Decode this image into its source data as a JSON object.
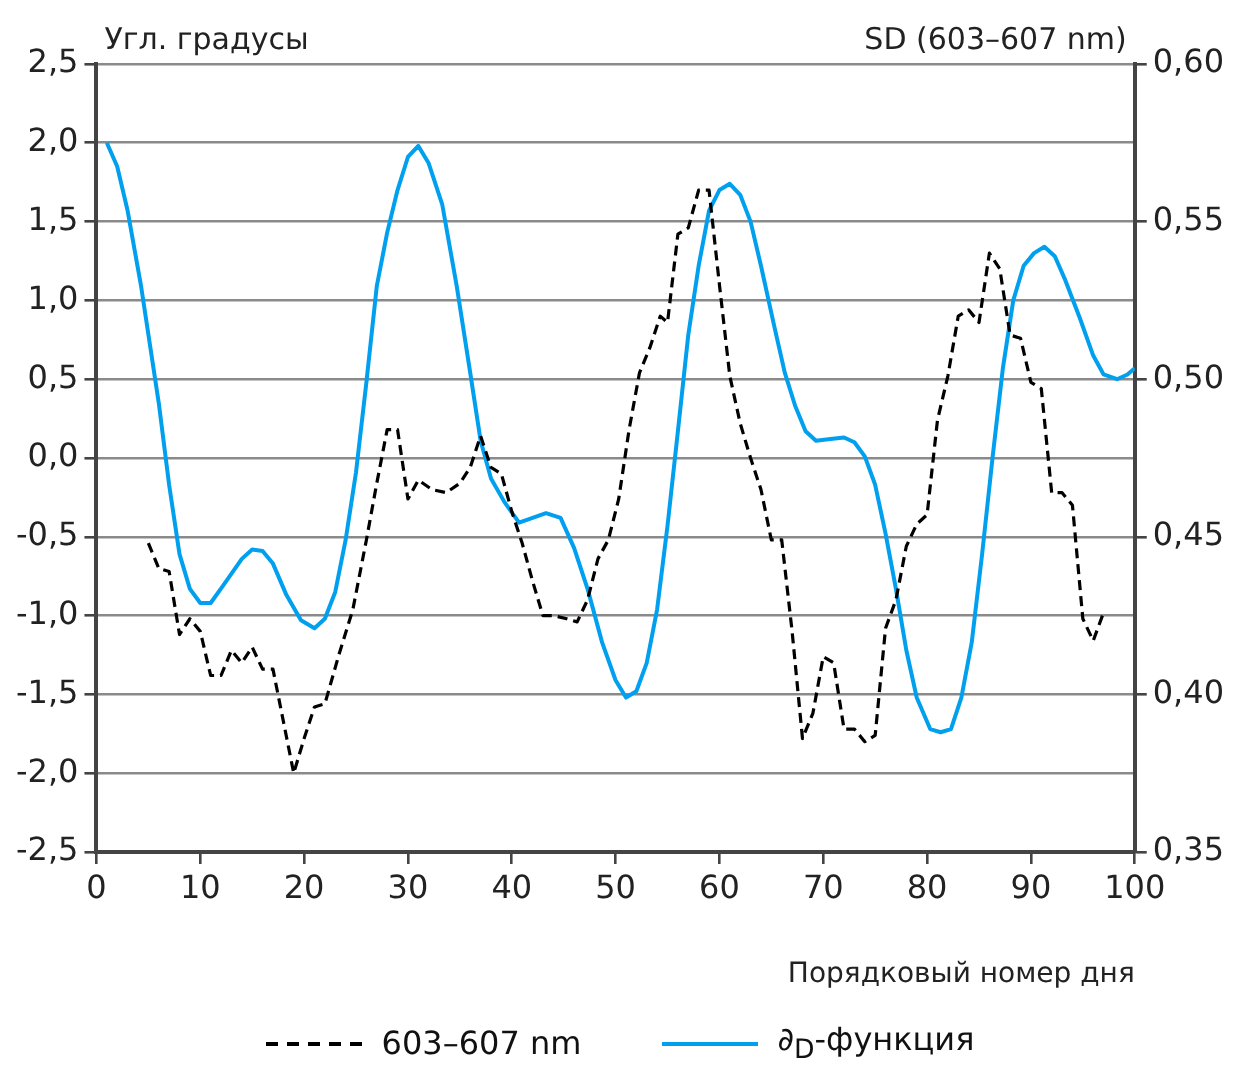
{
  "chart_data": {
    "type": "line",
    "xlabel": "Порядковый номер дня",
    "ylabel": "Угл. градусы",
    "y2label": "SD (603–607 nm)",
    "xlim": [
      0,
      100
    ],
    "xticks": [
      0,
      10,
      20,
      30,
      40,
      50,
      60,
      70,
      80,
      90,
      100
    ],
    "ylim": [
      -2.5,
      2.5
    ],
    "yticks": [
      {
        "value": -2.5,
        "label": "-2,5"
      },
      {
        "value": -2,
        "label": "-2,0"
      },
      {
        "value": -1.5,
        "label": "-1,5"
      },
      {
        "value": -1,
        "label": "-1,0"
      },
      {
        "value": -0.5,
        "label": "-0,5"
      },
      {
        "value": 0,
        "label": "0,0"
      },
      {
        "value": 0.5,
        "label": "0,5"
      },
      {
        "value": 1,
        "label": "1,0"
      },
      {
        "value": 1.5,
        "label": "1,5"
      },
      {
        "value": 2,
        "label": "2,0"
      },
      {
        "value": 2.5,
        "label": "2,5"
      }
    ],
    "y2lim": [
      0.35,
      0.6
    ],
    "y2ticks": [
      {
        "value": 0.35,
        "label": "0,35"
      },
      {
        "value": 0.4,
        "label": "0,40"
      },
      {
        "value": 0.45,
        "label": "0,45"
      },
      {
        "value": 0.5,
        "label": "0,50"
      },
      {
        "value": 0.55,
        "label": "0,55"
      },
      {
        "value": 0.6,
        "label": "0,60"
      }
    ],
    "grid": "y",
    "legend": "bottom",
    "marker": "none",
    "series": [
      {
        "name": "603–607 nm",
        "color": "#000000",
        "axis": "y2",
        "line_style": "dashed",
        "x": [
          5,
          6,
          7,
          8,
          9,
          10,
          11,
          12,
          13,
          14,
          15,
          16,
          17,
          19,
          20,
          21,
          22,
          23.3,
          24.7,
          26,
          27,
          28,
          29,
          30,
          31,
          32.3,
          33.7,
          35,
          36,
          37,
          38,
          39,
          40,
          41,
          42,
          43,
          44,
          45.3,
          46.3,
          47.3,
          48.3,
          49.3,
          50.3,
          51.3,
          52.3,
          53.3,
          54.3,
          55,
          56,
          57,
          58,
          59,
          60,
          61,
          62,
          63,
          64,
          65,
          66,
          67,
          68,
          69,
          70,
          71,
          72,
          73,
          74,
          75,
          76,
          77,
          78,
          79,
          80,
          81,
          82,
          83,
          84,
          85,
          86,
          87,
          88,
          89,
          90,
          91,
          92,
          93,
          94,
          95,
          96,
          97
        ],
        "values": [
          0.448,
          0.44,
          0.439,
          0.419,
          0.424,
          0.42,
          0.406,
          0.406,
          0.414,
          0.41,
          0.415,
          0.408,
          0.408,
          0.375,
          0.386,
          0.396,
          0.397,
          0.412,
          0.427,
          0.449,
          0.467,
          0.484,
          0.484,
          0.462,
          0.468,
          0.465,
          0.464,
          0.467,
          0.472,
          0.482,
          0.472,
          0.47,
          0.458,
          0.448,
          0.436,
          0.425,
          0.425,
          0.424,
          0.423,
          0.43,
          0.443,
          0.449,
          0.462,
          0.484,
          0.502,
          0.51,
          0.52,
          0.518,
          0.546,
          0.548,
          0.56,
          0.56,
          0.53,
          0.501,
          0.486,
          0.475,
          0.465,
          0.449,
          0.449,
          0.42,
          0.386,
          0.394,
          0.412,
          0.41,
          0.389,
          0.389,
          0.385,
          0.387,
          0.421,
          0.43,
          0.447,
          0.454,
          0.457,
          0.487,
          0.501,
          0.52,
          0.522,
          0.518,
          0.54,
          0.535,
          0.514,
          0.513,
          0.499,
          0.497,
          0.464,
          0.464,
          0.46,
          0.424,
          0.417,
          0.426
        ]
      },
      {
        "name": "∂$_{D}$-функция",
        "color": "#00a0ef",
        "line_style": "solid",
        "x": [
          1,
          2,
          3,
          4.3,
          6,
          7,
          8,
          9,
          10,
          11,
          12.3,
          14,
          15,
          16,
          17,
          18.3,
          19.7,
          21,
          22,
          23,
          24,
          25,
          26,
          27,
          28,
          29,
          30,
          31,
          32,
          33.3,
          34.7,
          36,
          37,
          38,
          39.3,
          40.7,
          42,
          43.3,
          44.7,
          46,
          47.3,
          48.7,
          50,
          51,
          52,
          53,
          54,
          55,
          56,
          57,
          58,
          59,
          60,
          61,
          62,
          63,
          64,
          65.3,
          66.3,
          67.3,
          68.3,
          69.3,
          70.7,
          72,
          73,
          74,
          75,
          76,
          77,
          78,
          79,
          80.3,
          81.3,
          82.3,
          83.3,
          84.3,
          85.3,
          86.3,
          87.3,
          88.3,
          89.3,
          90.3,
          91.3,
          92.3,
          93.3,
          94.7,
          96,
          97,
          98.3,
          99.3,
          100
        ],
        "values": [
          2.0,
          1.85,
          1.57,
          1.09,
          0.35,
          -0.17,
          -0.61,
          -0.83,
          -0.92,
          -0.92,
          -0.8,
          -0.64,
          -0.58,
          -0.59,
          -0.67,
          -0.87,
          -1.03,
          -1.08,
          -1.02,
          -0.85,
          -0.52,
          -0.09,
          0.48,
          1.09,
          1.43,
          1.7,
          1.91,
          1.98,
          1.87,
          1.61,
          1.09,
          0.54,
          0.11,
          -0.13,
          -0.28,
          -0.41,
          -0.38,
          -0.35,
          -0.38,
          -0.57,
          -0.83,
          -1.17,
          -1.41,
          -1.52,
          -1.48,
          -1.3,
          -0.96,
          -0.43,
          0.17,
          0.78,
          1.22,
          1.57,
          1.7,
          1.74,
          1.67,
          1.5,
          1.22,
          0.83,
          0.54,
          0.33,
          0.17,
          0.11,
          0.12,
          0.13,
          0.1,
          0.01,
          -0.17,
          -0.48,
          -0.83,
          -1.22,
          -1.52,
          -1.72,
          -1.74,
          -1.72,
          -1.52,
          -1.17,
          -0.61,
          0.0,
          0.57,
          1.0,
          1.22,
          1.3,
          1.34,
          1.28,
          1.13,
          0.89,
          0.65,
          0.53,
          0.5,
          0.53,
          0.57
        ]
      }
    ]
  }
}
